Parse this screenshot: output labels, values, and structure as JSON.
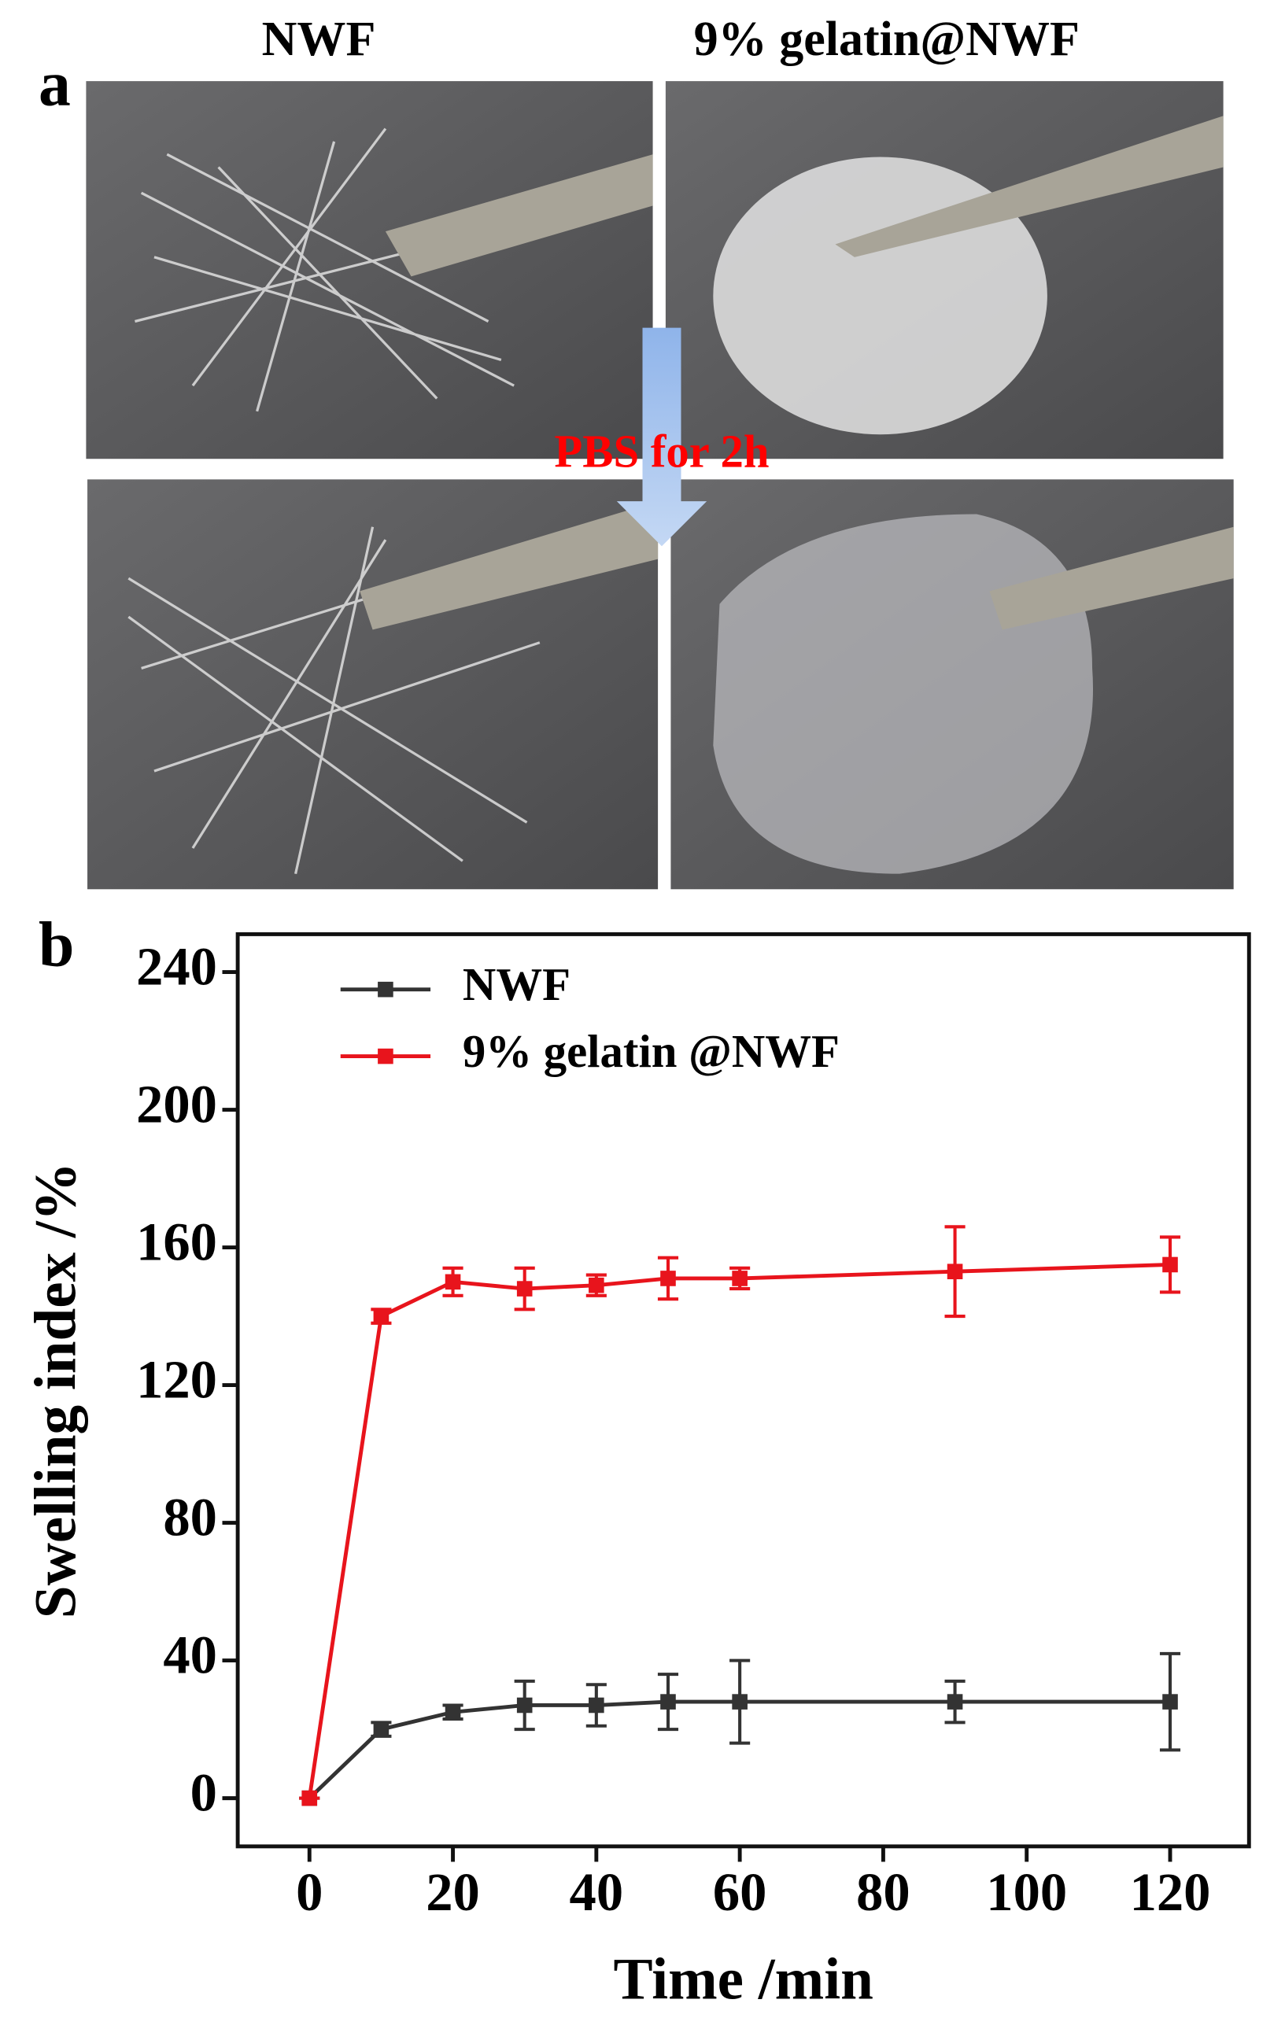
{
  "panel_a": {
    "label": "a",
    "left_title": "NWF",
    "right_title": "9% gelatin@NWF",
    "arrow_label": "PBS for 2h"
  },
  "chart_data": {
    "type": "line",
    "panel_label": "b",
    "x_label": "Time /min",
    "y_label": "Swelling index /%",
    "x": [
      0,
      10,
      20,
      30,
      40,
      50,
      60,
      90,
      120
    ],
    "series": [
      {
        "name": "NWF",
        "color": "#333333",
        "values": [
          0,
          20,
          25,
          27,
          27,
          28,
          28,
          28,
          28
        ],
        "errors": [
          0,
          2,
          2,
          7,
          6,
          8,
          12,
          6,
          14
        ]
      },
      {
        "name": "9% gelatin @NWF",
        "color": "#e8141c",
        "values": [
          0,
          140,
          150,
          148,
          149,
          151,
          151,
          153,
          155
        ],
        "errors": [
          0,
          2,
          4,
          6,
          3,
          6,
          3,
          13,
          8
        ]
      }
    ],
    "xlim": [
      -10,
      131
    ],
    "ylim": [
      -14,
      251
    ],
    "xticks": [
      0,
      20,
      40,
      60,
      80,
      100,
      120
    ],
    "yticks": [
      0,
      40,
      80,
      120,
      160,
      200,
      240
    ],
    "grid": false,
    "legend": "upper left"
  }
}
